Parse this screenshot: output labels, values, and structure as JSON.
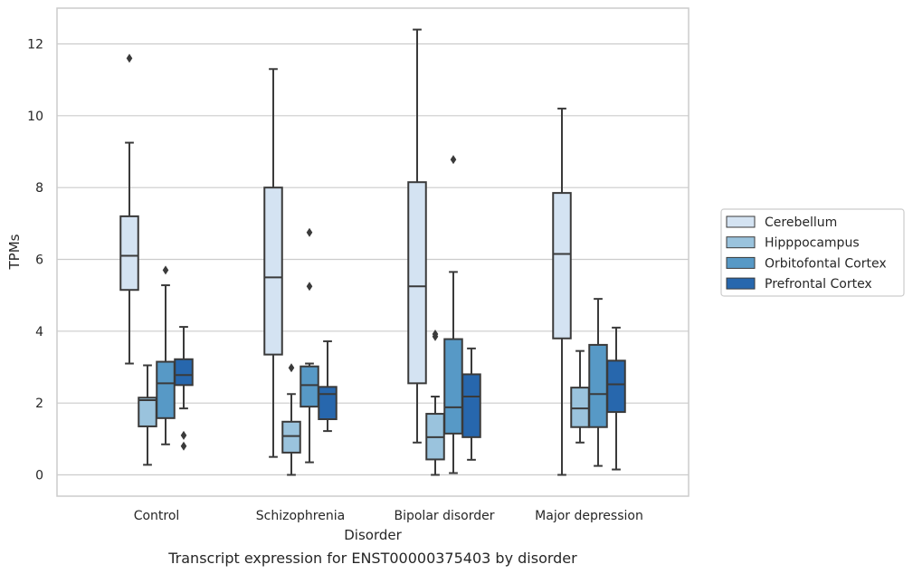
{
  "chart_data": {
    "type": "box",
    "title": "",
    "caption": "Transcript expression for ENST00000375403 by disorder",
    "xlabel": "Disorder",
    "ylabel": "TPMs",
    "ylim": [
      -0.6,
      13
    ],
    "yticks": [
      0,
      2,
      4,
      6,
      8,
      10,
      12
    ],
    "grid": "horizontal",
    "legend_position": "right",
    "categories": [
      "Control",
      "Schizophrenia",
      "Bipolar disorder",
      "Major depression"
    ],
    "series": [
      {
        "name": "Cerebellum",
        "color": "#d4e3f2",
        "boxes": [
          {
            "whislo": 3.1,
            "q1": 5.15,
            "med": 6.1,
            "q3": 7.2,
            "whishi": 9.25,
            "fliers": [
              11.6
            ]
          },
          {
            "whislo": 0.5,
            "q1": 3.35,
            "med": 5.5,
            "q3": 8.0,
            "whishi": 11.3,
            "fliers": []
          },
          {
            "whislo": 0.9,
            "q1": 2.55,
            "med": 5.25,
            "q3": 8.15,
            "whishi": 12.4,
            "fliers": []
          },
          {
            "whislo": 0.0,
            "q1": 3.8,
            "med": 6.15,
            "q3": 7.85,
            "whishi": 10.2,
            "fliers": []
          }
        ]
      },
      {
        "name": "Hipppocampus",
        "color": "#9ac3dd",
        "boxes": [
          {
            "whislo": 0.28,
            "q1": 1.35,
            "med": 2.08,
            "q3": 2.15,
            "whishi": 3.05,
            "fliers": []
          },
          {
            "whislo": 0.0,
            "q1": 0.62,
            "med": 1.08,
            "q3": 1.48,
            "whishi": 2.25,
            "fliers": [
              2.98
            ]
          },
          {
            "whislo": 0.0,
            "q1": 0.43,
            "med": 1.05,
            "q3": 1.7,
            "whishi": 2.18,
            "fliers": [
              3.85,
              3.92
            ]
          },
          {
            "whislo": 0.9,
            "q1": 1.33,
            "med": 1.85,
            "q3": 2.43,
            "whishi": 3.45,
            "fliers": []
          }
        ]
      },
      {
        "name": "Orbitofontal Cortex",
        "color": "#5799c6",
        "boxes": [
          {
            "whislo": 0.85,
            "q1": 1.58,
            "med": 2.55,
            "q3": 3.15,
            "whishi": 5.28,
            "fliers": [
              5.7
            ]
          },
          {
            "whislo": 0.35,
            "q1": 1.9,
            "med": 2.5,
            "q3": 3.02,
            "whishi": 3.1,
            "fliers": [
              5.25,
              6.75
            ]
          },
          {
            "whislo": 0.05,
            "q1": 1.15,
            "med": 1.88,
            "q3": 3.78,
            "whishi": 5.65,
            "fliers": [
              8.78
            ]
          },
          {
            "whislo": 0.25,
            "q1": 1.33,
            "med": 2.25,
            "q3": 3.62,
            "whishi": 4.9,
            "fliers": []
          }
        ]
      },
      {
        "name": "Prefrontal Cortex",
        "color": "#2767ad",
        "boxes": [
          {
            "whislo": 1.85,
            "q1": 2.5,
            "med": 2.78,
            "q3": 3.22,
            "whishi": 4.12,
            "fliers": [
              1.1,
              0.8
            ]
          },
          {
            "whislo": 1.22,
            "q1": 1.55,
            "med": 2.25,
            "q3": 2.45,
            "whishi": 3.72,
            "fliers": []
          },
          {
            "whislo": 0.42,
            "q1": 1.05,
            "med": 2.18,
            "q3": 2.8,
            "whishi": 3.52,
            "fliers": []
          },
          {
            "whislo": 0.15,
            "q1": 1.75,
            "med": 2.52,
            "q3": 3.18,
            "whishi": 4.1,
            "fliers": []
          }
        ]
      }
    ],
    "style": {
      "line_color": "#3a3a3a",
      "grid_color": "#cccccc",
      "frame_color": "#cccccc"
    }
  }
}
